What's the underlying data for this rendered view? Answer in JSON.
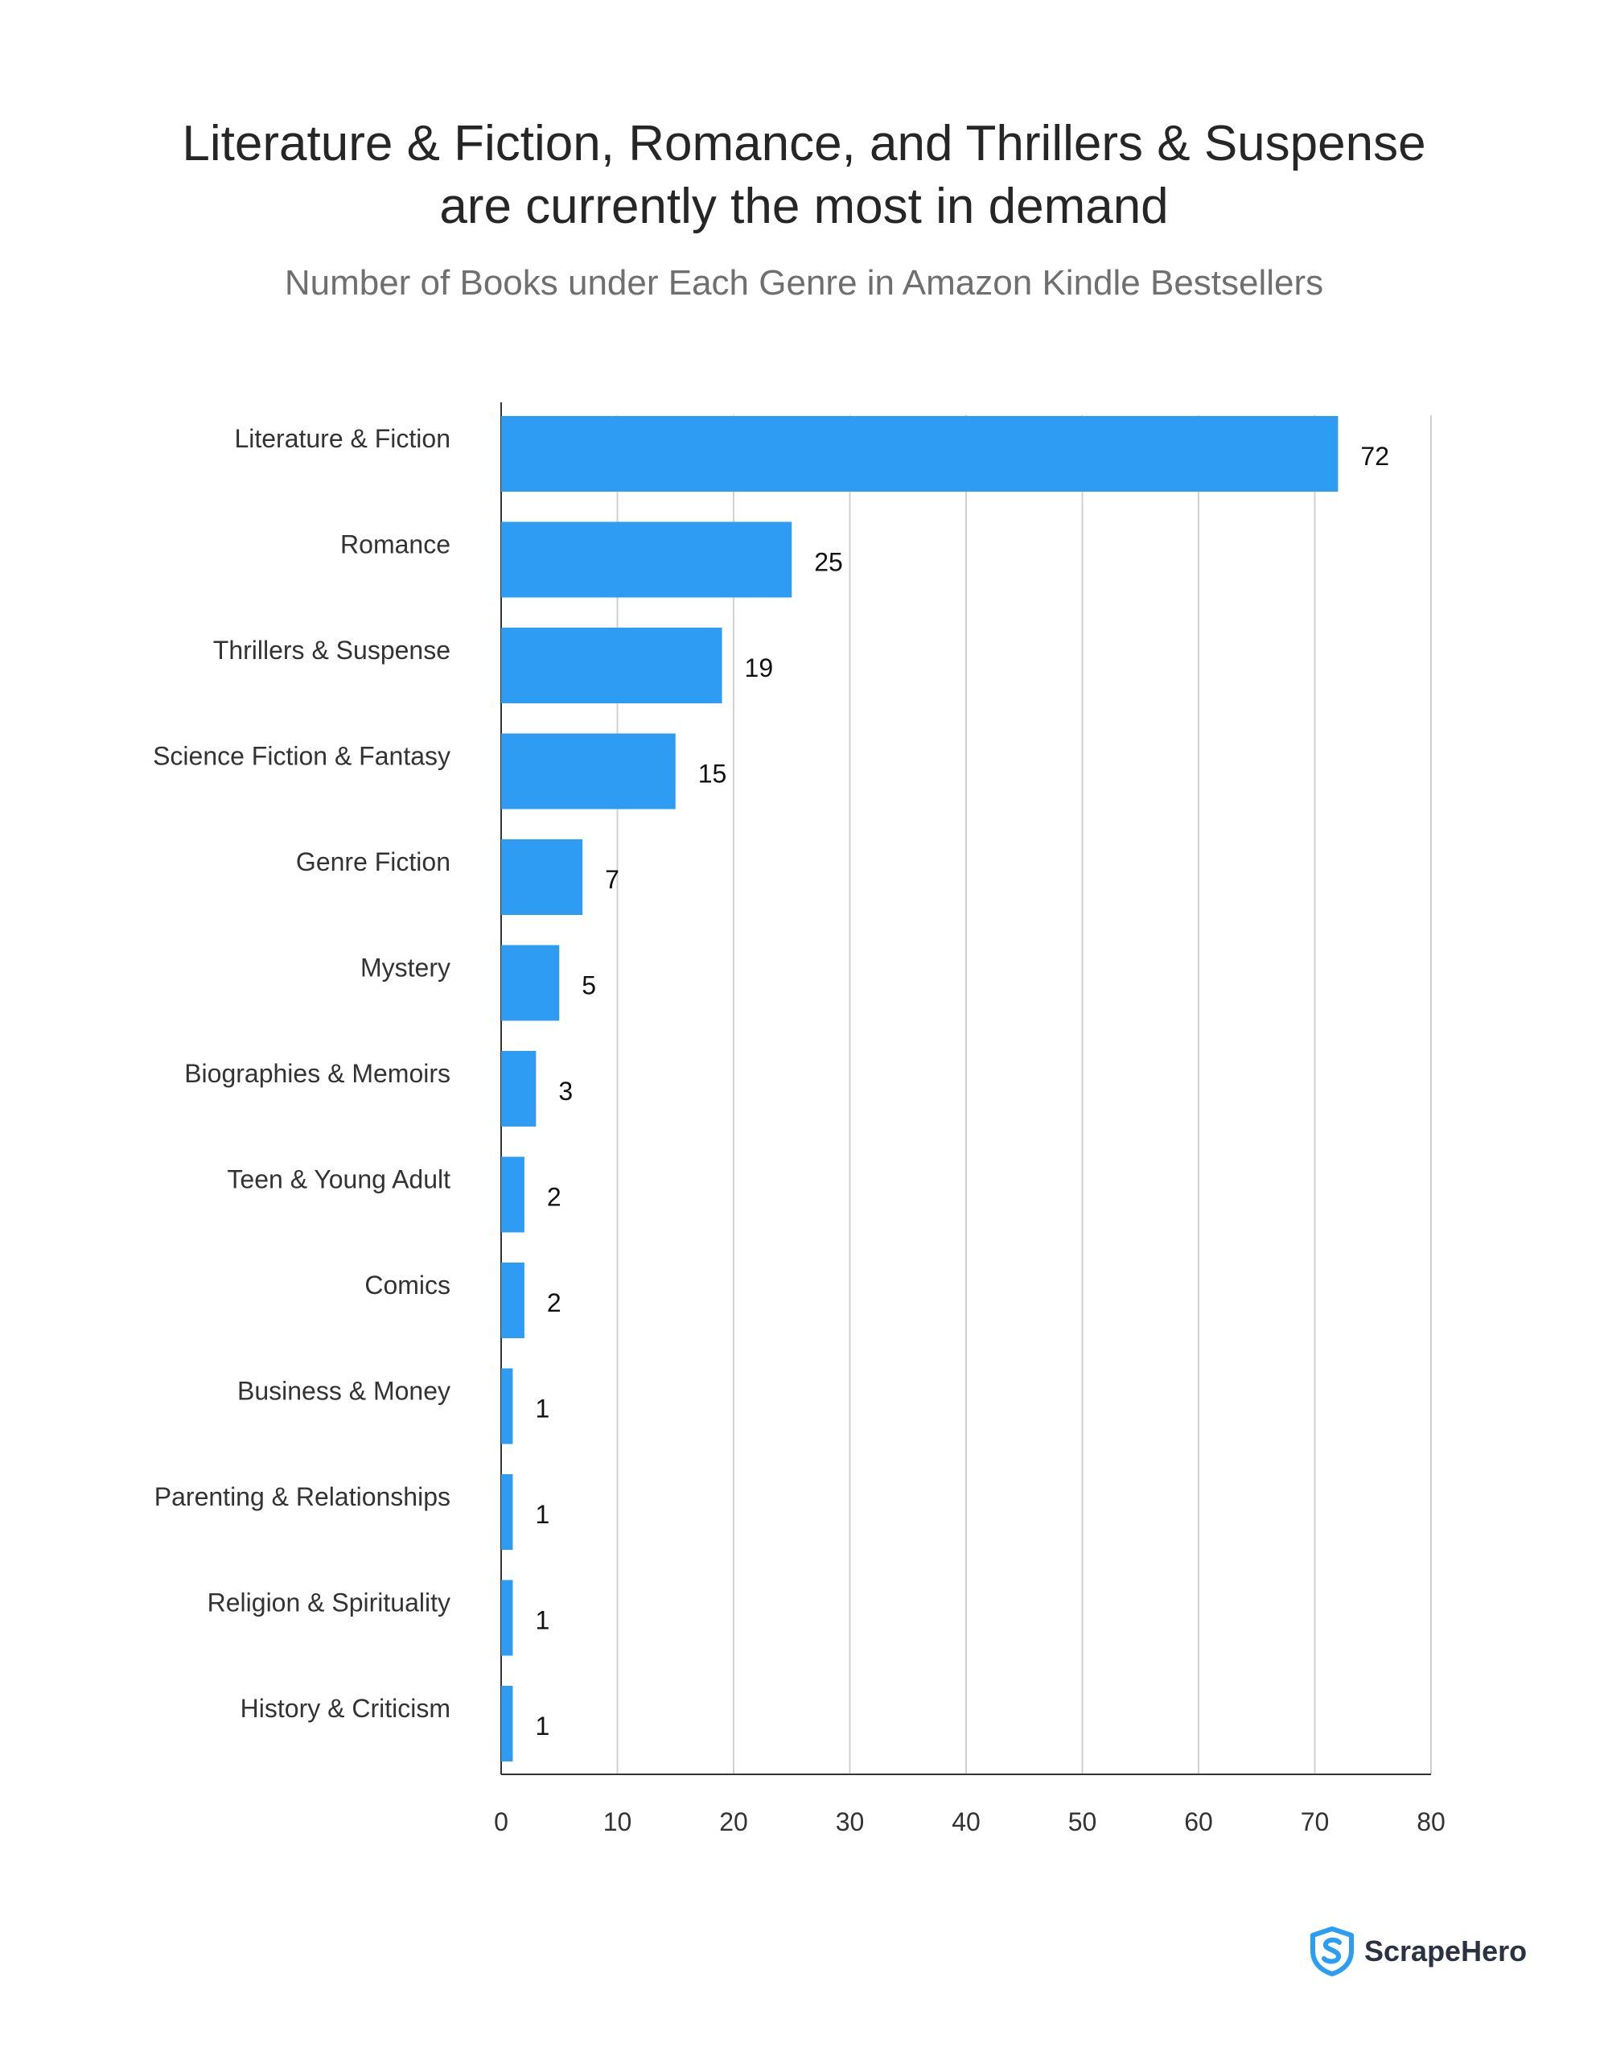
{
  "title_lines": [
    "Literature & Fiction, Romance, and Thrillers & Suspense",
    "are currently the most in demand"
  ],
  "subtitle": "Number of Books under Each Genre in Amazon Kindle Bestsellers",
  "logo": {
    "text": "ScrapeHero",
    "icon": "shield-s-icon",
    "color": "#2a9df4"
  },
  "chart_data": {
    "type": "bar",
    "orientation": "horizontal",
    "categories": [
      "Literature & Fiction",
      "Romance",
      "Thrillers & Suspense",
      "Science Fiction & Fantasy",
      "Genre Fiction",
      "Mystery",
      "Biographies & Memoirs",
      "Teen & Young Adult",
      "Comics",
      "Business & Money",
      "Parenting & Relationships",
      "Religion & Spirituality",
      "History & Criticism"
    ],
    "values": [
      72,
      25,
      19,
      15,
      7,
      5,
      3,
      2,
      2,
      1,
      1,
      1,
      1
    ],
    "xlim": [
      0,
      80
    ],
    "xticks": [
      0,
      10,
      20,
      30,
      40,
      50,
      60,
      70,
      80
    ],
    "grid": "vertical",
    "legend": "none",
    "data_labels": true,
    "bar_color": "#2e9cf3",
    "grid_color": "#d0d0d0"
  }
}
